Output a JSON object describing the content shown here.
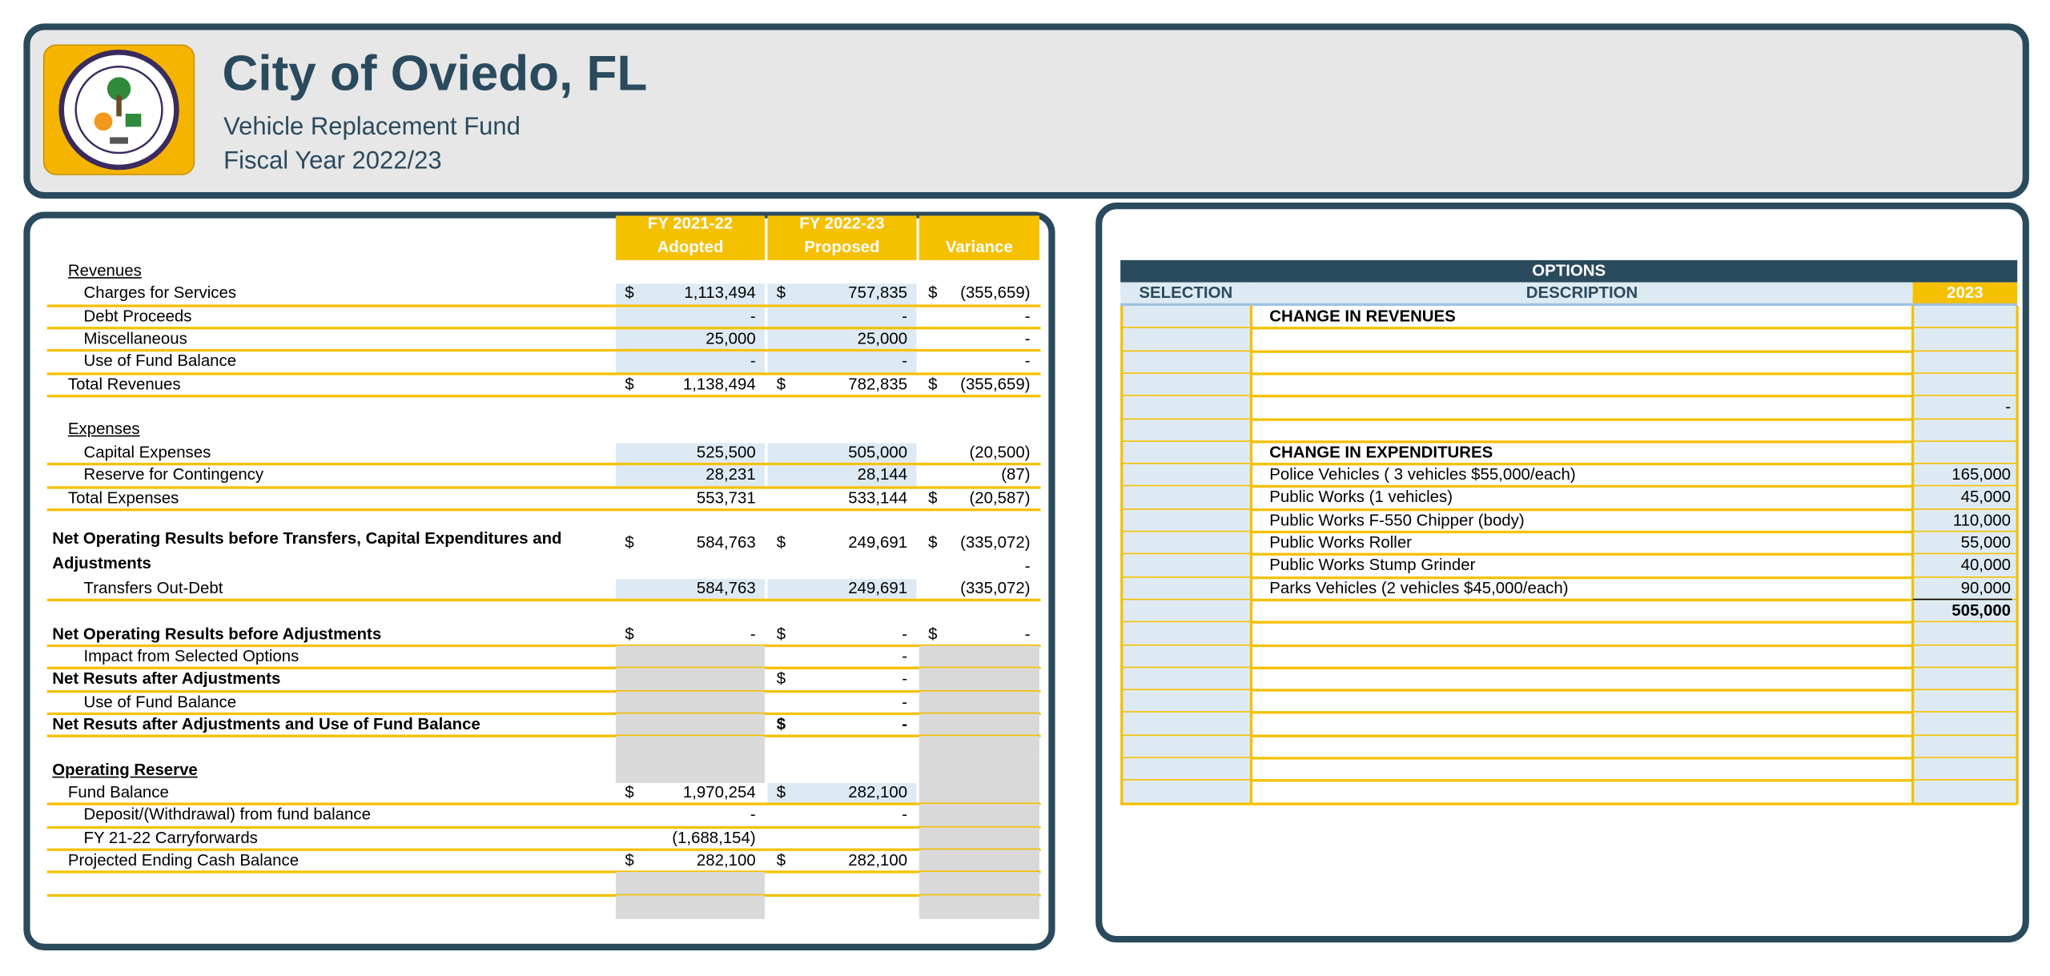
{
  "header": {
    "title": "City of Oviedo, FL",
    "subtitle": "Vehicle Replacement Fund",
    "fiscal_year": "Fiscal Year 2022/23"
  },
  "summary": {
    "columns": [
      [
        "FY 2021-22",
        "Adopted"
      ],
      [
        "FY 2022-23",
        "Proposed"
      ],
      [
        "Variance"
      ]
    ],
    "rows": [
      {
        "label": "Revenues",
        "cells": [
          null,
          null,
          null,
          null,
          null,
          null
        ]
      },
      {
        "label": "Charges for Services",
        "cells": [
          "$",
          "1,113,494",
          "$",
          "757,835",
          "$",
          "(355,659)"
        ]
      },
      {
        "label": "Debt Proceeds",
        "cells": [
          null,
          "-",
          null,
          "-",
          null,
          "-"
        ]
      },
      {
        "label": "Miscellaneous",
        "cells": [
          null,
          "25,000",
          null,
          "25,000",
          null,
          "-"
        ]
      },
      {
        "label": "Use of Fund Balance",
        "cells": [
          null,
          "-",
          null,
          "-",
          null,
          "-"
        ]
      },
      {
        "label": "Total Revenues",
        "cells": [
          "$",
          "1,138,494",
          "$",
          "782,835",
          "$",
          "(355,659)"
        ]
      },
      {
        "label": "Expenses",
        "cells": [
          null,
          null,
          null,
          null,
          null,
          null
        ]
      },
      {
        "label": "Capital Expenses",
        "cells": [
          null,
          "525,500",
          null,
          "505,000",
          null,
          "(20,500)"
        ]
      },
      {
        "label": "Reserve for Contingency",
        "cells": [
          null,
          "28,231",
          null,
          "28,144",
          null,
          "(87)"
        ]
      },
      {
        "label": "Total Expenses",
        "cells": [
          null,
          "553,731",
          null,
          "533,144",
          "$",
          "(20,587)"
        ]
      },
      {
        "label": "Net Operating Results before Transfers, Capital Expenditures and Adjustments",
        "cells": [
          "$",
          "584,763",
          "$",
          "249,691",
          "$",
          "(335,072)"
        ]
      },
      {
        "cells": [
          null,
          null,
          null,
          null,
          null,
          "-"
        ]
      },
      {
        "label": "Transfers Out-Debt",
        "cells": [
          null,
          "584,763",
          null,
          "249,691",
          null,
          "(335,072)"
        ]
      },
      {
        "label": "Net Operating Results before Adjustments",
        "cells": [
          "$",
          "-",
          "$",
          "-",
          "$",
          "-"
        ]
      },
      {
        "label": "Impact from Selected Options",
        "cells": [
          null,
          null,
          null,
          "-",
          null,
          null
        ]
      },
      {
        "label": "Net Resuts after Adjustments",
        "cells": [
          null,
          null,
          "$",
          "-",
          null,
          null
        ]
      },
      {
        "label": "Use of Fund Balance",
        "cells": [
          null,
          null,
          null,
          "-",
          null,
          null
        ]
      },
      {
        "label": "Net Resuts after Adjustments and Use of Fund Balance",
        "cells": [
          null,
          null,
          "$",
          "-",
          null,
          null
        ]
      },
      {
        "label": "Operating Reserve",
        "cells": [
          null,
          null,
          null,
          null,
          null,
          null
        ]
      },
      {
        "label": "Fund Balance",
        "cells": [
          "$",
          "1,970,254",
          "$",
          "282,100",
          null,
          null
        ]
      },
      {
        "label": "Deposit/(Withdrawal) from fund balance",
        "cells": [
          null,
          "-",
          null,
          "-",
          null,
          null
        ]
      },
      {
        "label": "FY 21-22 Carryforwards",
        "cells": [
          null,
          "(1,688,154)",
          null,
          null,
          null,
          null
        ]
      },
      {
        "label": "Projected Ending Cash Balance",
        "cells": [
          "$",
          "282,100",
          "$",
          "282,100",
          null,
          null
        ]
      }
    ]
  },
  "options": {
    "title": "OPTIONS",
    "columns": [
      "SELECTION",
      "DESCRIPTION",
      "2023"
    ],
    "rows": [
      {
        "description": "CHANGE IN REVENUES",
        "amount": null
      },
      {
        "description": null,
        "amount": "-"
      },
      {
        "description": "CHANGE IN EXPENDITURES",
        "amount": null
      },
      {
        "description": "Police Vehicles ( 3 vehicles $55,000/each)",
        "amount": "165,000"
      },
      {
        "description": "Public Works (1 vehicles)",
        "amount": "45,000"
      },
      {
        "description": "Public Works F-550 Chipper (body)",
        "amount": "110,000"
      },
      {
        "description": "Public Works Roller",
        "amount": "55,000"
      },
      {
        "description": "Public Works Stump Grinder",
        "amount": "40,000"
      },
      {
        "description": "Parks Vehicles (2 vehicles $45,000/each)",
        "amount": "90,000"
      },
      {
        "description": null,
        "amount": "505,000"
      }
    ]
  }
}
